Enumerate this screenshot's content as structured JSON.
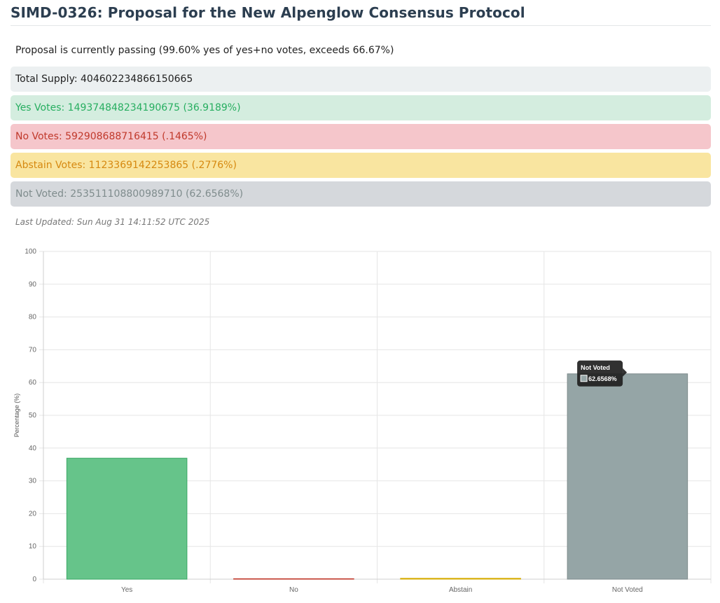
{
  "page": {
    "title": "SIMD-0326: Proposal for the New Alpenglow Consensus Protocol",
    "status": "Proposal is currently passing (99.60% yes of yes+no votes, exceeds 66.67%)",
    "last_updated": "Last Updated: Sun Aug 31 14:11:52 UTC 2025"
  },
  "stats": {
    "total_supply": "Total Supply: 404602234866150665",
    "yes": "Yes Votes: 149374848234190675 (36.9189%)",
    "no": "No Votes: 592908688716415 (.1465%)",
    "abstain": "Abstain Votes: 1123369142253865 (.2776%)",
    "not_voted": "Not Voted: 253511108800989710 (62.6568%)"
  },
  "colors": {
    "yes": "#66c48a",
    "no": "#e74c3c",
    "abstain": "#f1c40f",
    "not_voted": "#95a5a6"
  },
  "chart_data": {
    "type": "bar",
    "categories": [
      "Yes",
      "No",
      "Abstain",
      "Not Voted"
    ],
    "values": [
      36.9189,
      0.1465,
      0.2776,
      62.6568
    ],
    "ylabel": "Percentage (%)",
    "ylim": [
      0,
      100
    ],
    "yticks": [
      0,
      10,
      20,
      30,
      40,
      50,
      60,
      70,
      80,
      90,
      100
    ],
    "grid": true,
    "tooltip": {
      "title": "Not Voted",
      "value": "62.6568%"
    }
  }
}
